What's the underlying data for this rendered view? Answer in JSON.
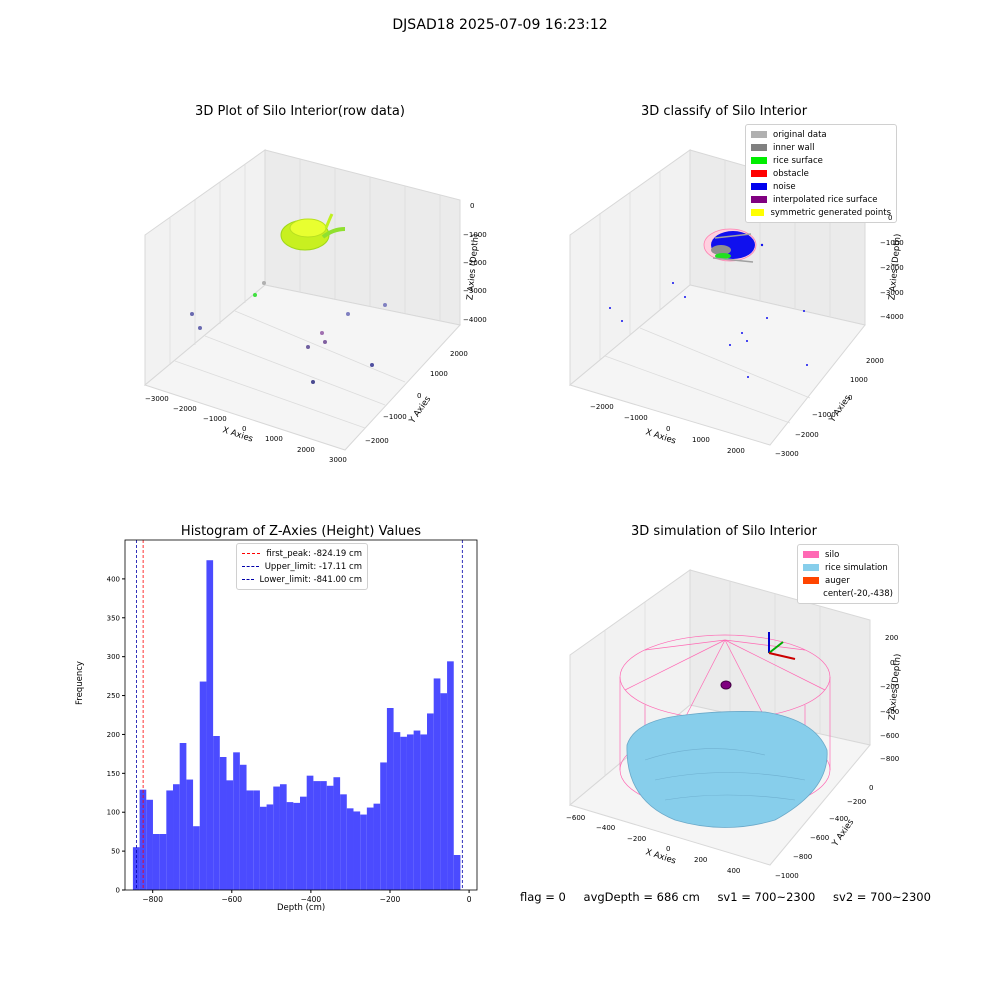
{
  "suptitle": "DJSAD18 2025-07-09 16:23:12",
  "panel_raw": {
    "title": "3D Plot of Silo Interior(row data)",
    "xlabel": "X Axies",
    "ylabel": "Y Axies",
    "zlabel": "Z Axies (Depth)",
    "xticks": [
      "−3000",
      "−2000",
      "−1000",
      "0",
      "1000",
      "2000",
      "3000"
    ],
    "yticks": [
      "−2000",
      "−1000",
      "0",
      "1000",
      "2000"
    ],
    "zticks": [
      "0",
      "−1000",
      "−2000",
      "−3000",
      "−4000"
    ]
  },
  "panel_classify": {
    "title": "3D classify of Silo Interior",
    "xlabel": "X Axies",
    "ylabel": "Y Axies",
    "zlabel": "Z Axies (Depth)",
    "xticks": [
      "−2000",
      "−1000",
      "0",
      "1000",
      "2000"
    ],
    "yticks": [
      "−3000",
      "−2000",
      "−1000",
      "0",
      "1000",
      "2000"
    ],
    "zticks": [
      "0",
      "−1000",
      "−2000",
      "−3000",
      "−4000"
    ],
    "legend": [
      {
        "label": "original data",
        "color": "#b0b0b0"
      },
      {
        "label": "inner wall",
        "color": "#808080"
      },
      {
        "label": "rice surface",
        "color": "#00ee00"
      },
      {
        "label": "obstacle",
        "color": "#ff0000"
      },
      {
        "label": "noise",
        "color": "#0000ee"
      },
      {
        "label": "interpolated rice surface",
        "color": "#800080"
      },
      {
        "label": "symmetric generated points",
        "color": "#ffff00"
      }
    ]
  },
  "panel_sim": {
    "title": "3D simulation of Silo Interior",
    "xlabel": "X Axies",
    "ylabel": "Y Axies",
    "zlabel": "Z Axies (Depth)",
    "xticks": [
      "−600",
      "−400",
      "−200",
      "0",
      "200",
      "400"
    ],
    "yticks": [
      "−1000",
      "−800",
      "−600",
      "−400",
      "−200",
      "0"
    ],
    "zticks": [
      "200",
      "0",
      "−200",
      "−400",
      "−600",
      "−800"
    ],
    "legend": [
      {
        "label": "silo",
        "color": "#ff69b4"
      },
      {
        "label": "rice simulation",
        "color": "#87ceeb"
      },
      {
        "label": "auger",
        "color": "#ff4500"
      },
      {
        "label": "center(-20,-438)",
        "color": ""
      }
    ]
  },
  "chart_data": {
    "type": "bar",
    "title": "Histogram of Z-Axies (Height) Values",
    "xlabel": "Depth (cm)",
    "ylabel": "Frequency",
    "xlim": [
      -870,
      20
    ],
    "ylim": [
      0,
      450
    ],
    "xticks": [
      -800,
      -600,
      -400,
      -200,
      0
    ],
    "xtick_labels": [
      "−800",
      "−600",
      "−400",
      "−200",
      "0"
    ],
    "yticks": [
      0,
      50,
      100,
      150,
      200,
      250,
      300,
      350,
      400
    ],
    "bin_start": -850,
    "bin_width": 16.9,
    "values": [
      55,
      129,
      116,
      72,
      72,
      128,
      136,
      189,
      142,
      82,
      268,
      424,
      198,
      171,
      141,
      177,
      161,
      128,
      128,
      107,
      110,
      133,
      136,
      113,
      112,
      120,
      147,
      140,
      140,
      134,
      145,
      123,
      105,
      101,
      97,
      106,
      111,
      164,
      234,
      203,
      197,
      200,
      205,
      200,
      227,
      272,
      253,
      294,
      45
    ],
    "bar_color": "#4b4bff",
    "lines": [
      {
        "label": "first_peak: -824.19 cm",
        "x": -824.19,
        "color": "#ff0000"
      },
      {
        "label": "Upper_limit: -17.11 cm",
        "x": -17.11,
        "color": "#0000aa"
      },
      {
        "label": "Lower_limit: -841.00 cm",
        "x": -841.0,
        "color": "#0000aa"
      }
    ]
  },
  "footer": {
    "flag": "flag = 0",
    "avg": "avgDepth = 686 cm",
    "sv1": "sv1 = 700~2300",
    "sv2": "sv2 = 700~2300"
  }
}
